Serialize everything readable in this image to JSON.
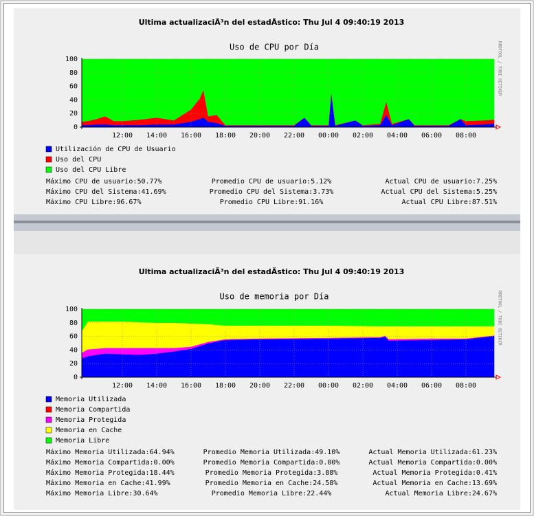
{
  "chart_data": [
    {
      "type": "area",
      "update_text": "Ultima actualizaciÃ³n del estadÃ­stico: Thu Jul 4 09:40:19 2013",
      "title": "Uso de CPU por Día",
      "watermark": "RRDTOOL / TOBI OETIKER",
      "x": [
        9.64,
        10,
        10.5,
        11,
        11.5,
        12,
        13,
        14,
        15,
        15.5,
        16,
        16.5,
        16.72,
        17,
        17.5,
        18,
        20,
        22,
        22.6,
        23,
        24,
        24.16,
        24.4,
        25.56,
        26,
        27,
        27.36,
        27.7,
        28.68,
        29,
        31,
        31.68,
        32,
        33,
        33.64
      ],
      "series": [
        {
          "name": "Utilización de CPU de Usuario",
          "color": "#0000ff",
          "values": [
            3,
            3,
            4,
            4,
            3,
            3,
            3,
            4,
            4,
            6,
            8,
            12,
            14,
            8,
            6,
            2,
            2,
            2,
            14,
            2,
            2,
            52,
            2,
            10,
            2,
            3,
            18,
            3,
            12,
            2,
            2,
            12,
            3,
            4,
            5
          ]
        },
        {
          "name": "Uso del CPU",
          "color": "#ff0000",
          "values": [
            5,
            6,
            8,
            12,
            6,
            6,
            8,
            10,
            6,
            12,
            18,
            30,
            41,
            8,
            12,
            1,
            1,
            1,
            0,
            1,
            1,
            0,
            1,
            0,
            1,
            2,
            20,
            2,
            0,
            1,
            1,
            0,
            6,
            6,
            6
          ]
        },
        {
          "name": "Uso del CPU Libre",
          "color": "#00ff00",
          "values": [
            92,
            91,
            88,
            84,
            91,
            91,
            89,
            86,
            90,
            82,
            74,
            58,
            45,
            84,
            82,
            97,
            97,
            97,
            86,
            97,
            97,
            48,
            97,
            90,
            97,
            95,
            62,
            95,
            88,
            97,
            97,
            88,
            91,
            90,
            89
          ]
        }
      ],
      "xlim": [
        9.64,
        33.64
      ],
      "xticks": [
        {
          "value": 12,
          "label": "12:00"
        },
        {
          "value": 14,
          "label": "14:00"
        },
        {
          "value": 16,
          "label": "16:00"
        },
        {
          "value": 18,
          "label": "18:00"
        },
        {
          "value": 20,
          "label": "20:00"
        },
        {
          "value": 22,
          "label": "22:00"
        },
        {
          "value": 24,
          "label": "00:00"
        },
        {
          "value": 26,
          "label": "02:00"
        },
        {
          "value": 28,
          "label": "04:00"
        },
        {
          "value": 30,
          "label": "06:00"
        },
        {
          "value": 32,
          "label": "08:00"
        }
      ],
      "ylim": [
        0,
        100
      ],
      "yticks": [
        0,
        20,
        40,
        60,
        80,
        100
      ],
      "grid": true,
      "stats": [
        [
          "Máximo CPU de usuario:50.77%",
          "Promedio CPU de usuario:5.12%",
          "Actual CPU de usuario:7.25%"
        ],
        [
          "Máximo CPU del Sistema:41.69%",
          "Promedio CPU del Sistema:3.73%",
          "Actual CPU del Sistema:5.25%"
        ],
        [
          "Máximo CPU Libre:96.67%",
          "Promedio CPU Libre:91.16%",
          "Actual CPU Libre:87.51%"
        ]
      ]
    },
    {
      "type": "area",
      "update_text": "Ultima actualizaciÃ³n del estadÃ­stico: Thu Jul 4 09:40:19 2013",
      "title": "Uso de memoria por Día",
      "watermark": "RRDTOOL / TOBI OETIKER",
      "x": [
        9.64,
        10,
        11,
        12,
        13,
        14,
        15,
        16,
        17,
        18,
        20,
        24,
        27,
        27.3,
        27.5,
        30,
        32,
        33.64
      ],
      "series": [
        {
          "name": "Memoria Utilizada",
          "color": "#0000ff",
          "values": [
            28,
            31,
            35,
            34,
            33,
            35,
            38,
            42,
            50,
            55,
            56,
            57,
            58,
            60,
            54,
            55,
            56,
            61
          ]
        },
        {
          "name": "Memoria Compartida",
          "color": "#ff0000",
          "values": [
            0,
            0,
            0,
            0,
            0,
            0,
            0,
            0,
            0,
            0,
            0,
            0,
            0,
            0,
            0,
            0,
            0,
            0
          ]
        },
        {
          "name": "Memoria Protegida",
          "color": "#ff00ff",
          "values": [
            8,
            10,
            8,
            9,
            10,
            8,
            5,
            3,
            2,
            1,
            1,
            1,
            1,
            1,
            2,
            2,
            1,
            0.4
          ]
        },
        {
          "name": "Memoria en Cache",
          "color": "#ffff00",
          "values": [
            32,
            41,
            39,
            39,
            38,
            37,
            37,
            34,
            26,
            20,
            19,
            18,
            16,
            14,
            19,
            18,
            18,
            13.6
          ]
        },
        {
          "name": "Memoria Libre",
          "color": "#00ff00",
          "values": [
            32,
            18,
            18,
            18,
            19,
            20,
            20,
            21,
            22,
            24,
            24,
            24,
            25,
            25,
            25,
            25,
            25,
            25
          ]
        }
      ],
      "xlim": [
        9.64,
        33.64
      ],
      "xticks": [
        {
          "value": 12,
          "label": "12:00"
        },
        {
          "value": 14,
          "label": "14:00"
        },
        {
          "value": 16,
          "label": "16:00"
        },
        {
          "value": 18,
          "label": "18:00"
        },
        {
          "value": 20,
          "label": "20:00"
        },
        {
          "value": 22,
          "label": "22:00"
        },
        {
          "value": 24,
          "label": "00:00"
        },
        {
          "value": 26,
          "label": "02:00"
        },
        {
          "value": 28,
          "label": "04:00"
        },
        {
          "value": 30,
          "label": "06:00"
        },
        {
          "value": 32,
          "label": "08:00"
        }
      ],
      "ylim": [
        0,
        100
      ],
      "yticks": [
        0,
        20,
        40,
        60,
        80,
        100
      ],
      "grid": true,
      "stats": [
        [
          "Máximo Memoria Utilizada:64.94%",
          "Promedio Memoria Utilizada:49.10%",
          "Actual Memoria Utilizada:61.23%"
        ],
        [
          "Máximo Memoria Compartida:0.00%",
          "Promedio Memoria Compartida:0.00%",
          "Actual Memoria Compartida:0.00%"
        ],
        [
          "Máximo Memoria Protegida:18.44%",
          "Promedio Memoria Protegida:3.88%",
          "Actual Memoria Protegida:0.41%"
        ],
        [
          "Máximo Memoria en Cache:41.99%",
          "Promedio Memoria en Cache:24.58%",
          "Actual Memoria en Cache:13.69%"
        ],
        [
          "Máximo Memoria Libre:30.64%",
          "Promedio Memoria Libre:22.44%",
          "Actual Memoria Libre:24.67%"
        ]
      ]
    }
  ]
}
